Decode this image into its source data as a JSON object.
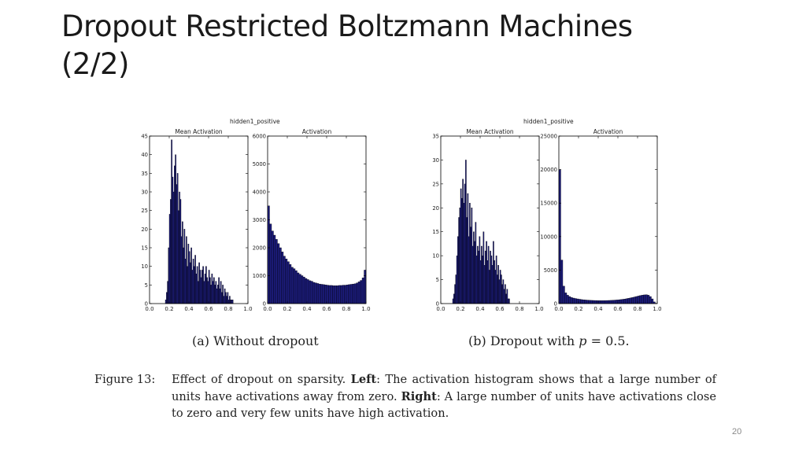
{
  "slide": {
    "title_line1": "Dropout Restricted Boltzmann Machines",
    "title_line2": "(2/2)",
    "page_number": "20"
  },
  "figure": {
    "subcaption_a": "(a) Without dropout",
    "subcaption_b_prefix": "(b) Dropout with ",
    "subcaption_b_var": "p",
    "subcaption_b_suffix": " = 0.5.",
    "caption_label": "Figure 13:",
    "caption_intro": "Effect of dropout on sparsity. ",
    "caption_left_label": "Left",
    "caption_left_text": ": The activation histogram shows that a large number of units have activations away from zero. ",
    "caption_right_label": "Right",
    "caption_right_text": ": A large number of units have activations close to zero and very few units have high activation."
  },
  "colors": {
    "bar_fill": "#1c1c7c",
    "bar_edge": "#000000"
  },
  "chart_data": [
    {
      "type": "bar",
      "suptitle": "hidden1_positive",
      "title": "Mean Activation",
      "xlim": [
        0.0,
        1.0
      ],
      "ylim": [
        0,
        45
      ],
      "xticks": [
        "0.0",
        "0.2",
        "0.4",
        "0.6",
        "0.8",
        "1.0"
      ],
      "yticks": [
        "0",
        "5",
        "10",
        "15",
        "20",
        "25",
        "30",
        "35",
        "40",
        "45"
      ],
      "x": [
        0.16,
        0.17,
        0.18,
        0.19,
        0.2,
        0.21,
        0.22,
        0.23,
        0.24,
        0.25,
        0.26,
        0.27,
        0.28,
        0.29,
        0.3,
        0.31,
        0.32,
        0.33,
        0.34,
        0.35,
        0.36,
        0.37,
        0.38,
        0.39,
        0.4,
        0.41,
        0.42,
        0.43,
        0.44,
        0.45,
        0.46,
        0.47,
        0.48,
        0.49,
        0.5,
        0.51,
        0.52,
        0.53,
        0.54,
        0.55,
        0.56,
        0.57,
        0.58,
        0.59,
        0.6,
        0.61,
        0.62,
        0.63,
        0.64,
        0.65,
        0.66,
        0.67,
        0.68,
        0.69,
        0.7,
        0.71,
        0.72,
        0.73,
        0.74,
        0.75,
        0.76,
        0.77,
        0.78,
        0.79,
        0.8,
        0.81,
        0.82,
        0.83,
        0.84
      ],
      "values": [
        1,
        3,
        6,
        15,
        24,
        28,
        44,
        34,
        30,
        37,
        40,
        32,
        35,
        25,
        30,
        28,
        18,
        22,
        15,
        20,
        12,
        18,
        10,
        16,
        14,
        11,
        15,
        9,
        12,
        10,
        13,
        8,
        10,
        6,
        11,
        9,
        7,
        9,
        10,
        6,
        8,
        10,
        7,
        6,
        9,
        7,
        5,
        8,
        6,
        7,
        5,
        6,
        4,
        5,
        7,
        4,
        6,
        3,
        5,
        2,
        4,
        3,
        2,
        3,
        1,
        2,
        1,
        1,
        1
      ]
    },
    {
      "type": "bar",
      "title": "Activation",
      "xlim": [
        0.0,
        1.0
      ],
      "ylim": [
        0,
        6000
      ],
      "xticks": [
        "0.0",
        "0.2",
        "0.4",
        "0.6",
        "0.8",
        "1.0"
      ],
      "yticks": [
        "0",
        "1000",
        "2000",
        "3000",
        "4000",
        "5000",
        "6000"
      ],
      "x": [
        0.0,
        0.02,
        0.04,
        0.06,
        0.08,
        0.1,
        0.12,
        0.14,
        0.16,
        0.18,
        0.2,
        0.22,
        0.24,
        0.26,
        0.28,
        0.3,
        0.32,
        0.34,
        0.36,
        0.38,
        0.4,
        0.42,
        0.44,
        0.46,
        0.48,
        0.5,
        0.52,
        0.54,
        0.56,
        0.58,
        0.6,
        0.62,
        0.64,
        0.66,
        0.68,
        0.7,
        0.72,
        0.74,
        0.76,
        0.78,
        0.8,
        0.82,
        0.84,
        0.86,
        0.88,
        0.9,
        0.92,
        0.94,
        0.96,
        0.98
      ],
      "values": [
        3500,
        2850,
        2600,
        2450,
        2300,
        2150,
        2000,
        1850,
        1700,
        1600,
        1500,
        1400,
        1300,
        1250,
        1180,
        1100,
        1050,
        1000,
        950,
        900,
        860,
        820,
        800,
        760,
        740,
        720,
        700,
        690,
        680,
        670,
        660,
        650,
        650,
        640,
        640,
        640,
        650,
        650,
        660,
        660,
        670,
        680,
        690,
        700,
        710,
        740,
        780,
        830,
        920,
        1200
      ]
    },
    {
      "type": "bar",
      "suptitle": "hidden1_positive",
      "title": "Mean Activation",
      "xlim": [
        0.0,
        1.0
      ],
      "ylim": [
        0,
        35
      ],
      "xticks": [
        "0.0",
        "0.2",
        "0.4",
        "0.6",
        "0.8",
        "1.0"
      ],
      "yticks": [
        "0",
        "5",
        "10",
        "15",
        "20",
        "25",
        "30",
        "35"
      ],
      "x": [
        0.12,
        0.13,
        0.14,
        0.15,
        0.16,
        0.17,
        0.18,
        0.19,
        0.2,
        0.21,
        0.22,
        0.23,
        0.24,
        0.25,
        0.26,
        0.27,
        0.28,
        0.29,
        0.3,
        0.31,
        0.32,
        0.33,
        0.34,
        0.35,
        0.36,
        0.37,
        0.38,
        0.39,
        0.4,
        0.41,
        0.42,
        0.43,
        0.44,
        0.45,
        0.46,
        0.47,
        0.48,
        0.49,
        0.5,
        0.51,
        0.52,
        0.53,
        0.54,
        0.55,
        0.56,
        0.57,
        0.58,
        0.59,
        0.6,
        0.61,
        0.62,
        0.63,
        0.64,
        0.65,
        0.66,
        0.67,
        0.68,
        0.69
      ],
      "values": [
        1,
        2,
        4,
        6,
        10,
        14,
        18,
        20,
        24,
        22,
        26,
        21,
        25,
        30,
        18,
        23,
        14,
        21,
        16,
        20,
        12,
        15,
        13,
        17,
        10,
        12,
        11,
        14,
        9,
        12,
        10,
        15,
        8,
        11,
        13,
        9,
        12,
        7,
        11,
        10,
        8,
        13,
        9,
        7,
        10,
        6,
        8,
        5,
        7,
        6,
        4,
        5,
        3,
        4,
        2,
        3,
        1,
        1
      ]
    },
    {
      "type": "bar",
      "title": "Activation",
      "xlim": [
        0.0,
        1.0
      ],
      "ylim": [
        0,
        25000
      ],
      "xticks": [
        "0.0",
        "0.2",
        "0.4",
        "0.6",
        "0.8",
        "1.0"
      ],
      "yticks": [
        "0",
        "5000",
        "10000",
        "15000",
        "20000",
        "25000"
      ],
      "x": [
        0.0,
        0.02,
        0.04,
        0.06,
        0.08,
        0.1,
        0.12,
        0.14,
        0.16,
        0.18,
        0.2,
        0.22,
        0.24,
        0.26,
        0.28,
        0.3,
        0.32,
        0.34,
        0.36,
        0.38,
        0.4,
        0.42,
        0.44,
        0.46,
        0.48,
        0.5,
        0.52,
        0.54,
        0.56,
        0.58,
        0.6,
        0.62,
        0.64,
        0.66,
        0.68,
        0.7,
        0.72,
        0.74,
        0.76,
        0.78,
        0.8,
        0.82,
        0.84,
        0.86,
        0.88,
        0.9,
        0.92,
        0.94,
        0.96,
        0.98
      ],
      "values": [
        20000,
        6500,
        2600,
        1600,
        1250,
        1050,
        900,
        820,
        760,
        700,
        650,
        600,
        570,
        540,
        520,
        500,
        480,
        470,
        460,
        455,
        450,
        450,
        450,
        455,
        460,
        470,
        480,
        500,
        520,
        540,
        570,
        600,
        640,
        680,
        730,
        790,
        850,
        920,
        990,
        1060,
        1130,
        1200,
        1260,
        1300,
        1320,
        1250,
        1050,
        700,
        250,
        50
      ]
    }
  ]
}
